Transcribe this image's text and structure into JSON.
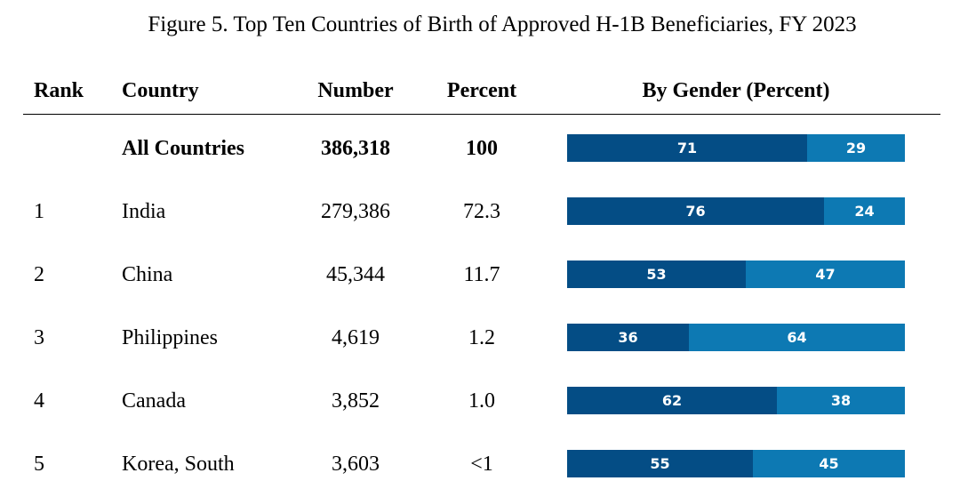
{
  "title": "Figure 5. Top Ten Countries of Birth of Approved H-1B Beneficiaries, FY 2023",
  "headers": {
    "rank": "Rank",
    "country": "Country",
    "number": "Number",
    "percent": "Percent",
    "gender": "By Gender (Percent)"
  },
  "colors": {
    "segment_1": "#044d85",
    "segment_2": "#0d79b3"
  },
  "chart_data": {
    "type": "bar",
    "stacked": true,
    "orientation": "horizontal",
    "title": "Figure 5. Top Ten Countries of Birth of Approved H-1B Beneficiaries, FY 2023",
    "column_label": "By Gender (Percent)",
    "xlim": [
      0,
      100
    ],
    "rows": [
      {
        "rank": "",
        "country": "All Countries",
        "number": "386,318",
        "percent": "100",
        "emphasis": true,
        "gender": [
          71,
          29
        ]
      },
      {
        "rank": "1",
        "country": "India",
        "number": "279,386",
        "percent": "72.3",
        "emphasis": false,
        "gender": [
          76,
          24
        ]
      },
      {
        "rank": "2",
        "country": "China",
        "number": "45,344",
        "percent": "11.7",
        "emphasis": false,
        "gender": [
          53,
          47
        ]
      },
      {
        "rank": "3",
        "country": "Philippines",
        "number": "4,619",
        "percent": "1.2",
        "emphasis": false,
        "gender": [
          36,
          64
        ]
      },
      {
        "rank": "4",
        "country": "Canada",
        "number": "3,852",
        "percent": "1.0",
        "emphasis": false,
        "gender": [
          62,
          38
        ]
      },
      {
        "rank": "5",
        "country": "Korea, South",
        "number": "3,603",
        "percent": "<1",
        "emphasis": false,
        "gender": [
          55,
          45
        ]
      }
    ]
  }
}
